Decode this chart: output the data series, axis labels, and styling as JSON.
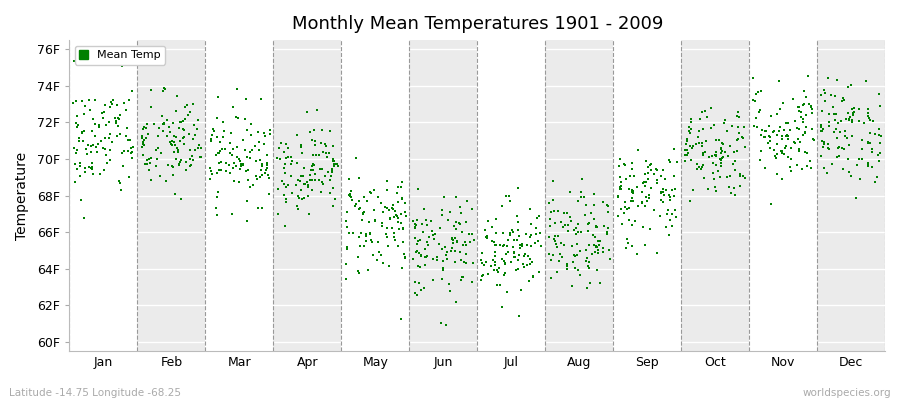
{
  "title": "Monthly Mean Temperatures 1901 - 2009",
  "ylabel": "Temperature",
  "subtitle_left": "Latitude -14.75 Longitude -68.25",
  "subtitle_right": "worldspecies.org",
  "yticks": [
    60,
    62,
    64,
    66,
    68,
    70,
    72,
    74,
    76
  ],
  "ytick_labels": [
    "60F",
    "62F",
    "64F",
    "66F",
    "68F",
    "70F",
    "72F",
    "74F",
    "76F"
  ],
  "ylim": [
    59.5,
    76.5
  ],
  "months": [
    "Jan",
    "Feb",
    "Mar",
    "Apr",
    "May",
    "Jun",
    "Jul",
    "Aug",
    "Sep",
    "Oct",
    "Nov",
    "Dec"
  ],
  "dot_color": "#008000",
  "legend_label": "Mean Temp",
  "bg_color": "#ffffff",
  "band_light": "#ffffff",
  "band_dark": "#ebebeb",
  "n_years": 109,
  "seed": 42,
  "monthly_means": [
    71.0,
    70.8,
    70.2,
    69.5,
    66.5,
    65.0,
    65.2,
    65.5,
    68.0,
    70.5,
    71.5,
    71.5
  ],
  "monthly_stds": [
    1.6,
    1.4,
    1.3,
    1.2,
    1.5,
    1.4,
    1.3,
    1.3,
    1.4,
    1.3,
    1.4,
    1.4
  ]
}
